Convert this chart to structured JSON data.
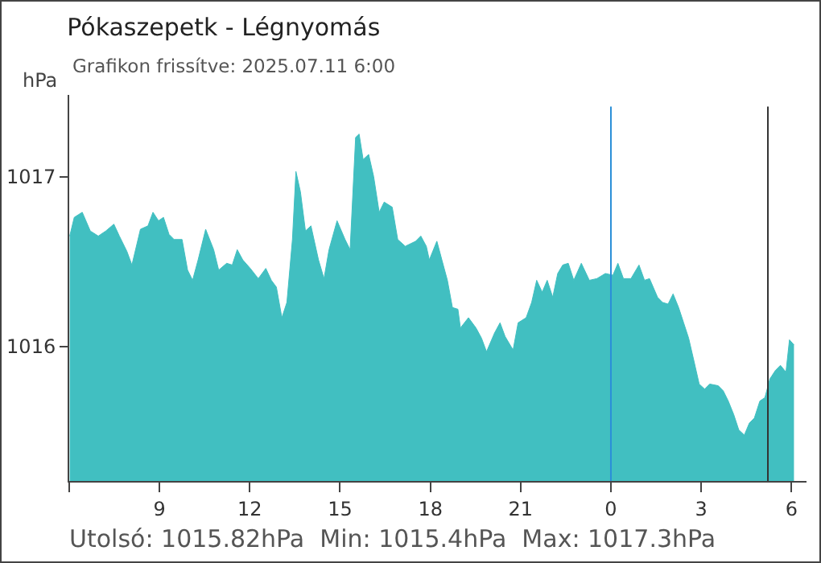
{
  "chart_data": {
    "type": "area",
    "title": "Pókaszepetk - Légnyomás",
    "subtitle": "Grafikon frissítve: 2025.07.11 6:00",
    "ylabel": "hPa",
    "annotations": [
      "Utolsó: 1015.82hPa  Min: 1015.4hPa  Max: 1017.3hPa"
    ],
    "x": [
      "2025-07-10T06:01",
      "2025-07-10T06:10",
      "2025-07-10T06:26",
      "2025-07-10T06:42",
      "2025-07-10T06:58",
      "2025-07-10T07:13",
      "2025-07-10T07:29",
      "2025-07-10T07:40",
      "2025-07-10T07:55",
      "2025-07-10T08:05",
      "2025-07-10T08:22",
      "2025-07-10T08:37",
      "2025-07-10T08:47",
      "2025-07-10T08:58",
      "2025-07-10T09:08",
      "2025-07-10T09:19",
      "2025-07-10T09:29",
      "2025-07-10T09:45",
      "2025-07-10T09:56",
      "2025-07-10T10:06",
      "2025-07-10T10:17",
      "2025-07-10T10:32",
      "2025-07-10T10:48",
      "2025-07-10T10:58",
      "2025-07-10T11:14",
      "2025-07-10T11:25",
      "2025-07-10T11:35",
      "2025-07-10T11:46",
      "2025-07-10T12:01",
      "2025-07-10T12:17",
      "2025-07-10T12:32",
      "2025-07-10T12:43",
      "2025-07-10T12:53",
      "2025-07-10T13:04",
      "2025-07-10T13:14",
      "2025-07-10T13:25",
      "2025-07-10T13:32",
      "2025-07-10T13:41",
      "2025-07-10T13:51",
      "2025-07-10T14:02",
      "2025-07-10T14:17",
      "2025-07-10T14:28",
      "2025-07-10T14:38",
      "2025-07-10T14:54",
      "2025-07-10T15:10",
      "2025-07-10T15:20",
      "2025-07-10T15:31",
      "2025-07-10T15:38",
      "2025-07-10T15:46",
      "2025-07-10T15:57",
      "2025-07-10T16:07",
      "2025-07-10T16:18",
      "2025-07-10T16:28",
      "2025-07-10T16:44",
      "2025-07-10T16:55",
      "2025-07-10T17:10",
      "2025-07-10T17:31",
      "2025-07-10T17:41",
      "2025-07-10T17:52",
      "2025-07-10T17:58",
      "2025-07-10T18:13",
      "2025-07-10T18:23",
      "2025-07-10T18:34",
      "2025-07-10T18:44",
      "2025-07-10T18:55",
      "2025-07-10T19:00",
      "2025-07-10T19:16",
      "2025-07-10T19:31",
      "2025-07-10T19:42",
      "2025-07-10T19:52",
      "2025-07-10T20:08",
      "2025-07-10T20:19",
      "2025-07-10T20:29",
      "2025-07-10T20:45",
      "2025-07-10T20:55",
      "2025-07-10T21:11",
      "2025-07-10T21:22",
      "2025-07-10T21:32",
      "2025-07-10T21:43",
      "2025-07-10T21:53",
      "2025-07-10T22:04",
      "2025-07-10T22:14",
      "2025-07-10T22:24",
      "2025-07-10T22:35",
      "2025-07-10T22:46",
      "2025-07-10T23:01",
      "2025-07-10T23:17",
      "2025-07-10T23:32",
      "2025-07-10T23:49",
      "2025-07-11T00:04",
      "2025-07-11T00:14",
      "2025-07-11T00:25",
      "2025-07-11T00:40",
      "2025-07-11T00:56",
      "2025-07-11T01:07",
      "2025-07-11T01:17",
      "2025-07-11T01:33",
      "2025-07-11T01:43",
      "2025-07-11T01:54",
      "2025-07-11T02:04",
      "2025-07-11T02:15",
      "2025-07-11T02:25",
      "2025-07-11T02:35",
      "2025-07-11T02:46",
      "2025-07-11T02:56",
      "2025-07-11T03:07",
      "2025-07-11T03:17",
      "2025-07-11T03:34",
      "2025-07-11T03:44",
      "2025-07-11T03:54",
      "2025-07-11T04:05",
      "2025-07-11T04:15",
      "2025-07-11T04:26",
      "2025-07-11T04:36",
      "2025-07-11T04:46",
      "2025-07-11T04:57",
      "2025-07-11T05:07",
      "2025-07-11T05:17",
      "2025-07-11T05:28",
      "2025-07-11T05:38",
      "2025-07-11T05:49",
      "2025-07-11T05:56",
      "2025-07-11T06:05"
    ],
    "series": [
      {
        "color": "#41bfc1",
        "values": [
          1016.65,
          1016.76,
          1016.79,
          1016.68,
          1016.65,
          1016.68,
          1016.72,
          1016.65,
          1016.56,
          1016.48,
          1016.69,
          1016.71,
          1016.79,
          1016.74,
          1016.76,
          1016.66,
          1016.63,
          1016.63,
          1016.45,
          1016.39,
          1016.51,
          1016.69,
          1016.57,
          1016.45,
          1016.49,
          1016.48,
          1016.57,
          1016.51,
          1016.46,
          1016.4,
          1016.46,
          1016.39,
          1016.35,
          1016.17,
          1016.26,
          1016.63,
          1017.03,
          1016.91,
          1016.68,
          1016.71,
          1016.51,
          1016.4,
          1016.57,
          1016.74,
          1016.63,
          1016.57,
          1017.23,
          1017.25,
          1017.1,
          1017.13,
          1017.0,
          1016.79,
          1016.85,
          1016.82,
          1016.63,
          1016.59,
          1016.62,
          1016.65,
          1016.59,
          1016.51,
          1016.62,
          1016.51,
          1016.39,
          1016.23,
          1016.22,
          1016.11,
          1016.17,
          1016.11,
          1016.05,
          1015.97,
          1016.08,
          1016.14,
          1016.06,
          1015.98,
          1016.14,
          1016.17,
          1016.26,
          1016.39,
          1016.32,
          1016.39,
          1016.29,
          1016.43,
          1016.48,
          1016.49,
          1016.39,
          1016.49,
          1016.39,
          1016.4,
          1016.43,
          1016.42,
          1016.49,
          1016.4,
          1016.4,
          1016.48,
          1016.39,
          1016.4,
          1016.29,
          1016.26,
          1016.25,
          1016.31,
          1016.23,
          1016.14,
          1016.05,
          1015.91,
          1015.78,
          1015.75,
          1015.78,
          1015.77,
          1015.74,
          1015.68,
          1015.6,
          1015.51,
          1015.48,
          1015.55,
          1015.58,
          1015.68,
          1015.7,
          1015.81,
          1015.86,
          1015.89,
          1015.85,
          1016.04,
          1016.01
        ]
      }
    ],
    "xlim": [
      "2025-07-10T06:00",
      "2025-07-11T06:30"
    ],
    "xticks": [
      {
        "value": "2025-07-10T06:00",
        "label": null
      },
      {
        "value": "2025-07-10T09:00",
        "label": "9"
      },
      {
        "value": "2025-07-10T12:00",
        "label": "12"
      },
      {
        "value": "2025-07-10T15:00",
        "label": "15"
      },
      {
        "value": "2025-07-10T18:00",
        "label": "18"
      },
      {
        "value": "2025-07-10T21:00",
        "label": "21"
      },
      {
        "value": "2025-07-11T00:00",
        "label": "0"
      },
      {
        "value": "2025-07-11T03:00",
        "label": "3"
      },
      {
        "value": "2025-07-11T06:00",
        "label": "6"
      }
    ],
    "ylim": [
      1015.21,
      1017.48
    ],
    "yticks": [
      1016,
      1017
    ],
    "ref_lines": [
      {
        "axis": "x",
        "value": "2025-07-11T00:00",
        "color": "#2a8fd8"
      },
      {
        "axis": "x",
        "value": "2025-07-11T05:13",
        "color": "#333333"
      }
    ],
    "grid": false
  }
}
